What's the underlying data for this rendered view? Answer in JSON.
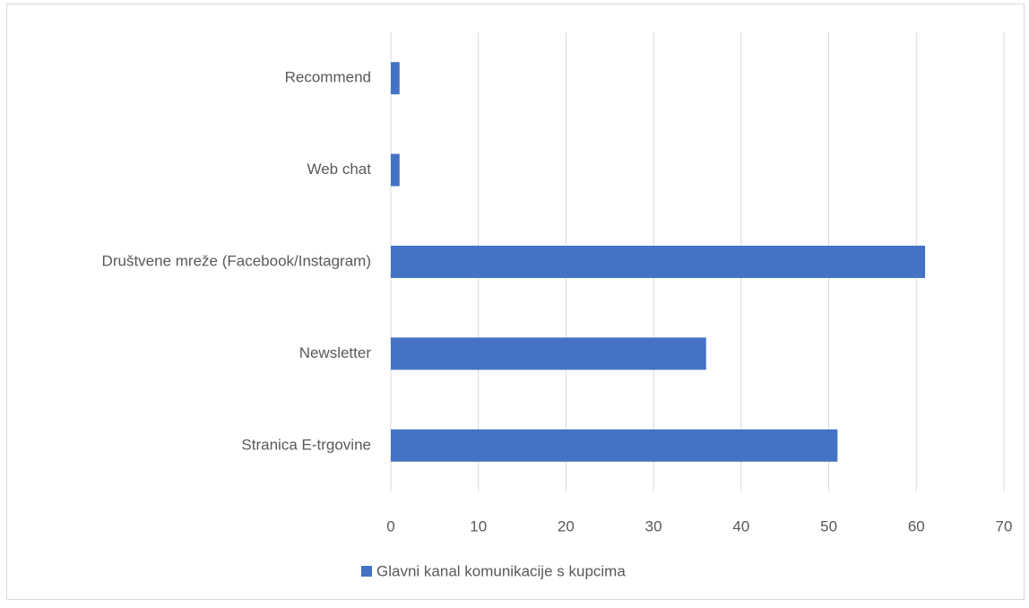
{
  "chart_data": {
    "type": "barh",
    "categories": [
      "Recommend",
      "Web chat",
      "Društvene mreže (Facebook/Instagram)",
      "Newsletter",
      "Stranica E-trgovine"
    ],
    "series": [
      {
        "name": "Glavni kanal komunikacije s kupcima",
        "color": "#4472c4",
        "values": [
          1,
          1,
          61,
          36,
          51
        ]
      }
    ],
    "xlim": [
      0,
      70
    ],
    "xticks": [
      0,
      10,
      20,
      30,
      40,
      50,
      60,
      70
    ],
    "grid": true,
    "legend": "bottom"
  }
}
